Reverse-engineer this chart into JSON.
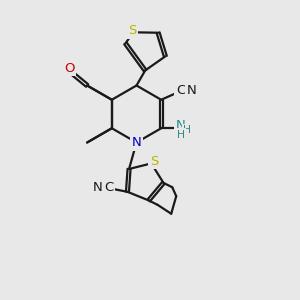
{
  "bg_color": "#e8e8e8",
  "bond_color": "#1a1a1a",
  "bond_lw": 1.6,
  "dbo": 0.05,
  "colors": {
    "S": "#b8b800",
    "N": "#0000cc",
    "O": "#cc0000",
    "NH2": "#2e8b8b",
    "C": "#1a1a1a"
  },
  "fs": 9.5
}
